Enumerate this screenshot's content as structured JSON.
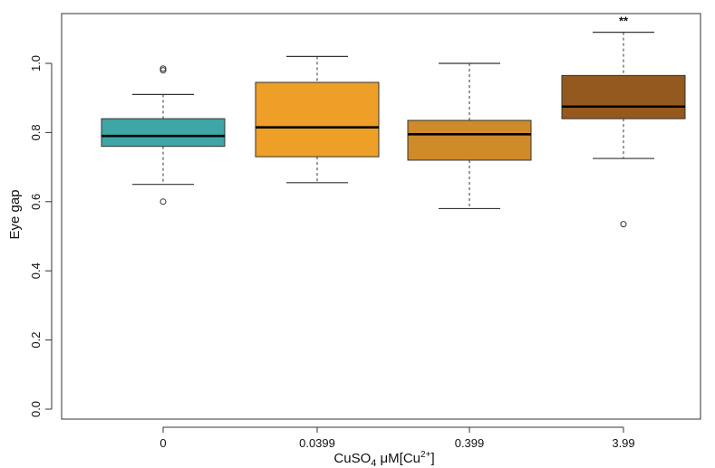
{
  "chart_data": {
    "type": "box",
    "xlabel": {
      "prefix": "CuSO",
      "sub": "4",
      "unit": " μM[Cu",
      "sup": "2+",
      "close": "]"
    },
    "ylabel": "Eye gap",
    "ylim": [
      0.0,
      1.0
    ],
    "yticks": [
      "0.0",
      "0.2",
      "0.4",
      "0.6",
      "0.8",
      "1.0"
    ],
    "categories": [
      "0",
      "0.0399",
      "0.399",
      "3.99"
    ],
    "boxes": [
      {
        "category": "0",
        "whisker_low": 0.65,
        "q1": 0.76,
        "median": 0.79,
        "q3": 0.84,
        "whisker_high": 0.91,
        "outliers": [
          0.98,
          0.985,
          0.6
        ],
        "color": "#3ea6a6",
        "annotation": ""
      },
      {
        "category": "0.0399",
        "whisker_low": 0.655,
        "q1": 0.73,
        "median": 0.815,
        "q3": 0.945,
        "whisker_high": 1.02,
        "outliers": [],
        "color": "#ee9f28",
        "annotation": ""
      },
      {
        "category": "0.399",
        "whisker_low": 0.58,
        "q1": 0.72,
        "median": 0.795,
        "q3": 0.835,
        "whisker_high": 1.0,
        "outliers": [],
        "color": "#cf8a2a",
        "annotation": ""
      },
      {
        "category": "3.99",
        "whisker_low": 0.725,
        "q1": 0.84,
        "median": 0.875,
        "q3": 0.965,
        "whisker_high": 1.09,
        "outliers": [
          0.535
        ],
        "color": "#94591f",
        "annotation": "**"
      }
    ],
    "grid": false
  }
}
